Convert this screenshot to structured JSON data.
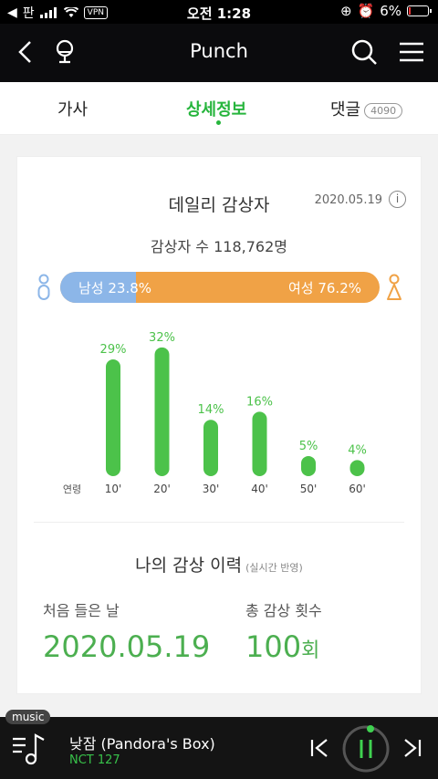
{
  "status": {
    "carrier": "판",
    "vpn": "VPN",
    "time": "오전 1:28",
    "battery": "6%"
  },
  "header": {
    "title": "Punch"
  },
  "tabs": [
    {
      "label": "가사"
    },
    {
      "label": "상세정보"
    },
    {
      "label": "댓글",
      "badge": "4090"
    }
  ],
  "daily": {
    "title": "데일리 감상자",
    "date": "2020.05.19",
    "listeners": "감상자 수 118,762명",
    "male_label": "남성 23.8%",
    "female_label": "여성 76.2%",
    "male_pct": 23.8,
    "accent": "#4cc24a",
    "male_color": "#8cb6e8",
    "female_color": "#f0a246"
  },
  "chart_data": {
    "type": "bar",
    "categories": [
      "10'",
      "20'",
      "30'",
      "40'",
      "50'",
      "60'"
    ],
    "values": [
      29,
      32,
      14,
      16,
      5,
      4
    ],
    "value_labels": [
      "29%",
      "32%",
      "14%",
      "16%",
      "5%",
      "4%"
    ],
    "xlabel": "연령",
    "ylim": [
      0,
      34
    ]
  },
  "history": {
    "title": "나의 감상 이력",
    "note": "(실시간 반영)",
    "first_label": "처음 들은 날",
    "first_value": "2020.05.19",
    "count_label": "총 감상 횟수",
    "count_value": "100",
    "count_unit": "회"
  },
  "player": {
    "tag": "music",
    "song": "낮잠 (Pandora's Box)",
    "artist": "NCT 127"
  }
}
